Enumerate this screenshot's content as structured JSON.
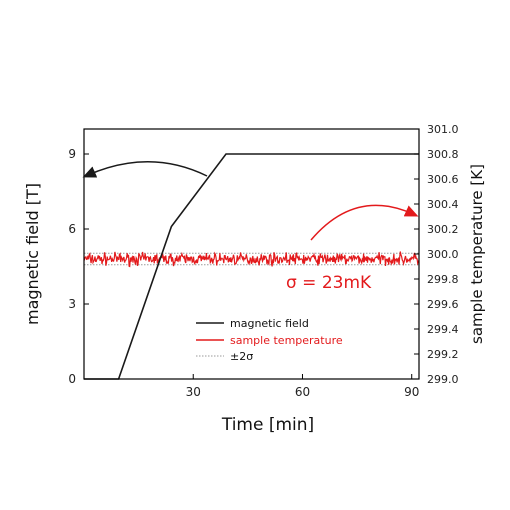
{
  "chart_data": {
    "type": "line",
    "xlabel": "Time [min]",
    "ylabel_left": "magnetic field [T]",
    "ylabel_right": "sample temperature [K]",
    "xlim": [
      0,
      92
    ],
    "ylim_left": [
      0,
      10
    ],
    "ylim_right": [
      299.0,
      301.0
    ],
    "x_ticks": [
      30,
      60,
      90
    ],
    "y_ticks_left": [
      0,
      3,
      6,
      9
    ],
    "y_ticks_right": [
      299.0,
      299.2,
      299.4,
      299.6,
      299.8,
      300.0,
      300.2,
      300.4,
      300.6,
      300.8,
      301.0
    ],
    "y_tick_labels_right": [
      "299.0",
      "299.2",
      "299.4",
      "299.6",
      "299.8",
      "300.0",
      "300.2",
      "300.4",
      "300.6",
      "300.8",
      "301.0"
    ],
    "legend_placement": "bottom-center",
    "grid": false,
    "series": [
      {
        "name": "magnetic field",
        "axis": "left",
        "color": "#1a1a1a",
        "x": [
          0,
          9.5,
          24,
          39,
          92
        ],
        "y": [
          0,
          0,
          6.1,
          9.0,
          9.0
        ]
      },
      {
        "name": "sample temperature",
        "axis": "right",
        "color": "#e31a1c",
        "mean": 299.96,
        "sigma_K": 0.023,
        "x_range": [
          0,
          92
        ]
      },
      {
        "name": "±2σ",
        "axis": "right",
        "color": "#9a9a9a",
        "style": "dotted",
        "y": [
          299.914,
          300.006
        ]
      }
    ],
    "annotations": [
      {
        "text": "σ = 23mK",
        "color": "#e31a1c"
      }
    ]
  }
}
